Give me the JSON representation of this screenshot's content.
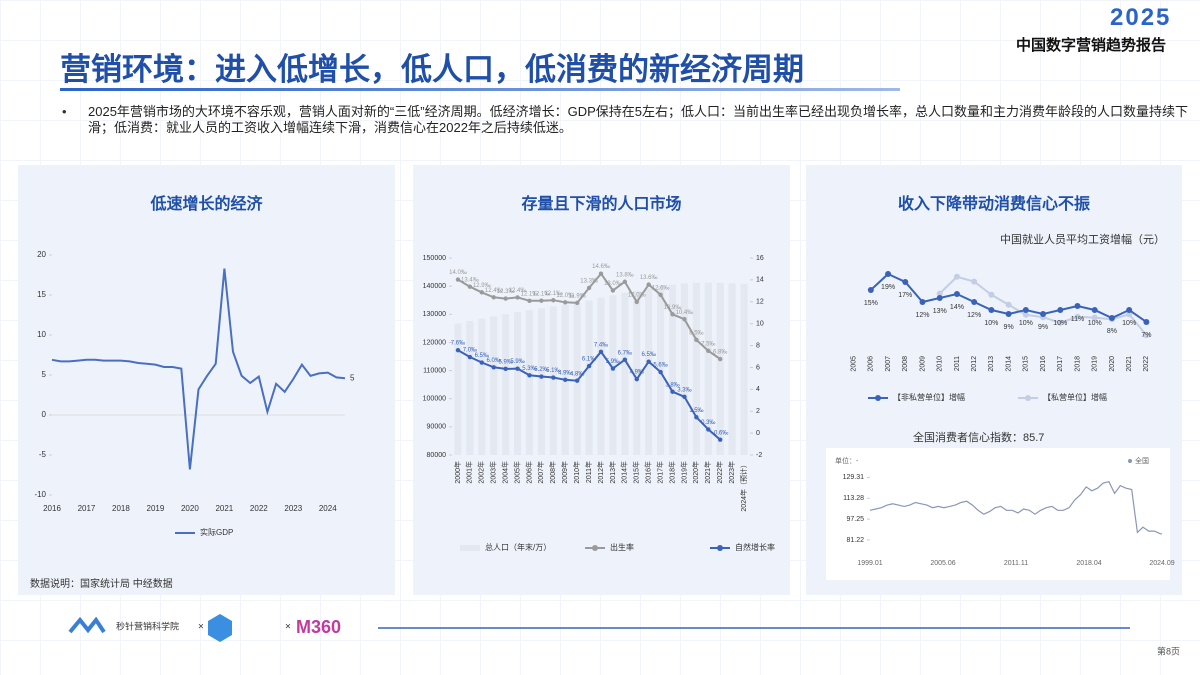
{
  "header": {
    "year": "2025",
    "report": "中国数字营销趋势报告",
    "title": "营销环境：进入低增长，低人口，低消费的新经济周期",
    "bullet": "2025年营销市场的大环境不容乐观，营销人面对新的“三低”经济周期。低经济增长：GDP保持在5左右；低人口：当前出生率已经出现负增长率，总人口数量和主力消费年龄段的人口数量持续下滑；低消费：就业人员的工资收入增幅连续下滑，消费信心在2022年之后持续低迷。"
  },
  "panels": [
    "低速增长的经济",
    "存量且下滑的人口市场",
    "收入下降带动消费信心不振"
  ],
  "source": "数据说明：国家统计局 中经数据",
  "footer": {
    "brand1": "秒针营销科学院",
    "times": "×",
    "brand3": "M360",
    "page": "第8页"
  },
  "chart_data": [
    {
      "type": "line",
      "categories": [
        "2016",
        null,
        null,
        null,
        "2017",
        null,
        null,
        null,
        "2018",
        null,
        null,
        null,
        "2019",
        null,
        null,
        null,
        "2020",
        null,
        null,
        null,
        "2021",
        null,
        null,
        null,
        "2022",
        null,
        null,
        null,
        "2023",
        null,
        null,
        null,
        "2024",
        null,
        null
      ],
      "series": [
        {
          "name": "实际GDP",
          "color": "#4a6fc1",
          "values": [
            6.9,
            6.7,
            6.7,
            6.8,
            6.9,
            6.9,
            6.8,
            6.8,
            6.8,
            6.7,
            6.5,
            6.4,
            6.3,
            6.0,
            6.0,
            5.8,
            -6.8,
            3.2,
            4.9,
            6.4,
            18.3,
            7.9,
            4.9,
            4.0,
            4.8,
            0.4,
            3.9,
            2.9,
            4.5,
            6.3,
            4.9,
            5.2,
            5.3,
            4.7,
            4.6
          ],
          "end_label": "5"
        }
      ],
      "ylim": [
        -10,
        20
      ],
      "yticks": [
        -10,
        -5,
        0,
        5,
        10,
        15,
        20
      ]
    },
    {
      "type": "combo",
      "categories": [
        "2000年",
        "2001年",
        "2002年",
        "2003年",
        "2004年",
        "2005年",
        "2006年",
        "2007年",
        "2008年",
        "2009年",
        "2010年",
        "2011年",
        "2012年",
        "2013年",
        "2014年",
        "2015年",
        "2016年",
        "2017年",
        "2018年",
        "2019年",
        "2020年",
        "2021年",
        "2022年",
        "2023年",
        "2024年（预计）"
      ],
      "series": [
        {
          "name": "总人口（年末/万）",
          "kind": "bar",
          "color": "#e3e8f1",
          "values": [
            126743,
            127627,
            128453,
            129227,
            129988,
            130756,
            131448,
            132129,
            132802,
            133450,
            134091,
            134916,
            135922,
            136726,
            137646,
            138326,
            139232,
            140011,
            140541,
            141008,
            141212,
            141260,
            141175,
            140967,
            140828
          ]
        },
        {
          "name": "出生率",
          "kind": "line",
          "axis": "y2",
          "color": "#9a9a9a",
          "values": [
            14.03,
            13.38,
            12.86,
            12.41,
            12.29,
            12.4,
            12.09,
            12.1,
            12.14,
            11.95,
            11.9,
            13.27,
            14.57,
            13.03,
            13.83,
            11.99,
            13.57,
            12.64,
            10.86,
            10.41,
            8.52,
            7.52,
            6.77,
            null,
            null
          ],
          "value_labels": [
            "14.0‰",
            "13.4‰",
            "12.9‰",
            "12.4‰",
            "12.3‰",
            "12.4‰",
            "12.1‰",
            "12.1‰",
            "12.1‰",
            "12.0‰",
            "11.9‰",
            "13.3‰",
            "14.6‰",
            "13.0‰",
            "13.8‰",
            "12.0‰",
            "13.6‰",
            "12.6‰",
            "10.9‰",
            "10.4‰",
            "8.5‰",
            "7.5‰",
            "6.8‰",
            null,
            null
          ]
        },
        {
          "name": "自然增长率",
          "kind": "line",
          "axis": "y2",
          "color": "#3a62b8",
          "values": [
            7.58,
            6.95,
            6.45,
            6.01,
            5.87,
            5.89,
            5.28,
            5.17,
            5.08,
            4.87,
            4.79,
            6.13,
            7.43,
            5.9,
            6.71,
            4.93,
            6.53,
            5.58,
            3.78,
            3.32,
            1.45,
            0.34,
            -0.6,
            null,
            null
          ],
          "value_labels": [
            "7.6‰",
            "7.0‰",
            "6.5‰",
            "6.0‰",
            "5.9‰",
            "5.9‰",
            "5.3‰",
            "5.2‰",
            "5.1‰",
            "4.9‰",
            "4.8‰",
            "6.1‰",
            "7.4‰",
            "5.9‰",
            "6.7‰",
            "4.9‰",
            "6.5‰",
            "5.6‰",
            "3.8‰",
            "3.3‰",
            "1.5‰",
            "0.3‰",
            "-0.6‰",
            null,
            null
          ]
        }
      ],
      "ylim": [
        80000,
        150000
      ],
      "yticks": [
        80000,
        90000,
        100000,
        110000,
        120000,
        130000,
        140000,
        150000
      ],
      "y2lim": [
        -2,
        16
      ],
      "y2ticks": [
        -2,
        0,
        2,
        4,
        6,
        8,
        10,
        12,
        14,
        16
      ]
    },
    {
      "type": "line",
      "title": "中国就业人员平均工资增幅（元）",
      "categories": [
        "2005",
        "2006",
        "2007",
        "2008",
        "2009",
        "2010",
        "2011",
        "2012",
        "2013",
        "2014",
        "2015",
        "2016",
        "2017",
        "2018",
        "2019",
        "2020",
        "2021",
        "2022"
      ],
      "series": [
        {
          "name": "【非私营单位】增幅",
          "color": "#3a62b8",
          "values": [
            null,
            15,
            19,
            17,
            12,
            13,
            14,
            12,
            10,
            9,
            10,
            9,
            10,
            11,
            10,
            8,
            10,
            7
          ],
          "value_labels": [
            null,
            "15%",
            "19%",
            "17%",
            "12%",
            "13%",
            "14%",
            "12%",
            "10%",
            "9%",
            "10%",
            "9%",
            "10%",
            "11%",
            "10%",
            "8%",
            "10%",
            "7%"
          ]
        },
        {
          "name": "【私营单位】增幅",
          "color": "#c3cde3",
          "values": [
            null,
            null,
            null,
            null,
            null,
            14.1,
            18.3,
            17.1,
            13.8,
            11.3,
            8.8,
            8.2,
            6.8,
            8.3,
            8.1,
            7.7,
            8.9,
            3.7
          ]
        }
      ],
      "ylim": [
        0,
        22
      ]
    },
    {
      "type": "line",
      "title": "全国消费者信心指数：85.7",
      "unit": "单位：-",
      "x": [
        "1999.01",
        "1999.07",
        "2000.01",
        "2000.07",
        "2001.01",
        "2001.07",
        "2002.01",
        "2002.07",
        "2003.01",
        "2003.07",
        "2004.01",
        "2004.07",
        "2005.01",
        "2005.07",
        "2006.01",
        "2006.07",
        "2007.01",
        "2007.07",
        "2008.01",
        "2008.07",
        "2009.01",
        "2009.07",
        "2010.01",
        "2010.07",
        "2011.01",
        "2011.07",
        "2012.01",
        "2012.07",
        "2013.01",
        "2013.07",
        "2014.01",
        "2014.07",
        "2015.01",
        "2015.07",
        "2016.01",
        "2016.07",
        "2017.01",
        "2017.07",
        "2018.01",
        "2018.07",
        "2019.01",
        "2019.07",
        "2020.01",
        "2020.07",
        "2021.01",
        "2021.07",
        "2022.01",
        "2022.07",
        "2023.01",
        "2023.07",
        "2024.01",
        "2024.07",
        "2024.09"
      ],
      "series": [
        {
          "name": "全国",
          "color": "#8a97b3",
          "values": [
            104,
            105,
            106,
            108,
            109,
            108,
            107,
            108,
            110,
            109,
            108,
            106,
            107,
            106,
            107,
            108,
            110,
            111,
            108,
            104,
            101,
            103,
            106,
            107,
            104,
            104,
            102,
            105,
            104,
            101,
            104,
            106,
            107,
            104,
            104,
            106,
            112,
            116,
            122,
            119,
            121,
            125,
            126,
            117,
            123,
            121,
            120,
            87,
            91,
            88,
            88,
            86,
            85.7
          ]
        }
      ],
      "xticks": [
        "1999.01",
        "2005.06",
        "2011.11",
        "2018.04",
        "2024.09"
      ],
      "ylim": [
        75,
        135
      ],
      "yticks": [
        81.22,
        97.25,
        113.28,
        129.31
      ]
    }
  ]
}
